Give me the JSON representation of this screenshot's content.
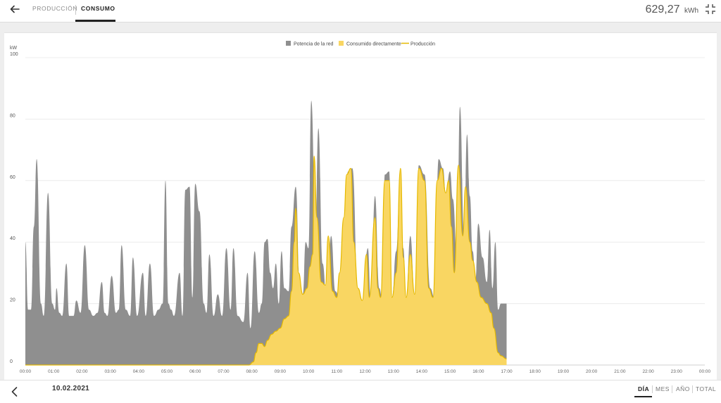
{
  "header": {
    "tabs": [
      {
        "label": "PRODUCCIÓN",
        "active": false
      },
      {
        "label": "CONSUMO",
        "active": true
      }
    ],
    "total_value": "629,27",
    "total_unit": "kWh"
  },
  "footer": {
    "date": "10.02.2021",
    "periods": [
      "DÍA",
      "MES",
      "AÑO",
      "TOTAL"
    ],
    "active_period": "DÍA"
  },
  "colors": {
    "grid": "#8f8f8f",
    "direct": "#f9d662",
    "production_line": "#e5b900"
  },
  "chart_data": {
    "type": "area",
    "ylabel": "kW",
    "ylim": [
      0,
      100
    ],
    "yticks": [
      0,
      20,
      40,
      60,
      80,
      100
    ],
    "xticks": [
      "00:00",
      "01:00",
      "02:00",
      "03:00",
      "04:00",
      "05:00",
      "06:00",
      "07:00",
      "08:00",
      "09:00",
      "10:00",
      "11:00",
      "12:00",
      "13:00",
      "14:00",
      "15:00",
      "16:00",
      "17:00",
      "18:00",
      "19:00",
      "20:00",
      "21:00",
      "22:00",
      "23:00",
      "00:00"
    ],
    "legend": [
      "Potencia de la red",
      "Consumido directamente",
      "Producción"
    ],
    "legend_position": "top-center",
    "series": [
      {
        "name": "Potencia de la red",
        "points": [
          [
            0.0,
            40
          ],
          [
            0.1,
            18
          ],
          [
            0.2,
            18
          ],
          [
            0.3,
            45
          ],
          [
            0.4,
            67
          ],
          [
            0.55,
            20
          ],
          [
            0.65,
            16
          ],
          [
            0.8,
            56
          ],
          [
            0.95,
            20
          ],
          [
            1.05,
            18
          ],
          [
            1.1,
            25
          ],
          [
            1.2,
            17
          ],
          [
            1.3,
            16
          ],
          [
            1.45,
            33
          ],
          [
            1.55,
            16
          ],
          [
            1.7,
            16
          ],
          [
            1.8,
            21
          ],
          [
            1.95,
            17
          ],
          [
            2.1,
            39
          ],
          [
            2.25,
            18
          ],
          [
            2.4,
            16
          ],
          [
            2.55,
            17
          ],
          [
            2.7,
            27
          ],
          [
            2.8,
            17
          ],
          [
            2.9,
            16
          ],
          [
            3.05,
            29
          ],
          [
            3.2,
            17
          ],
          [
            3.3,
            18
          ],
          [
            3.4,
            39
          ],
          [
            3.55,
            18
          ],
          [
            3.7,
            16
          ],
          [
            3.8,
            35
          ],
          [
            3.95,
            16
          ],
          [
            4.15,
            30
          ],
          [
            4.25,
            16
          ],
          [
            4.4,
            33
          ],
          [
            4.55,
            16
          ],
          [
            4.7,
            18
          ],
          [
            4.85,
            20
          ],
          [
            4.95,
            60
          ],
          [
            5.05,
            20
          ],
          [
            5.15,
            18
          ],
          [
            5.25,
            16
          ],
          [
            5.45,
            30
          ],
          [
            5.55,
            16
          ],
          [
            5.65,
            57
          ],
          [
            5.8,
            58
          ],
          [
            5.9,
            22
          ],
          [
            6.0,
            59
          ],
          [
            6.15,
            50
          ],
          [
            6.3,
            20
          ],
          [
            6.4,
            17
          ],
          [
            6.5,
            36
          ],
          [
            6.65,
            16
          ],
          [
            6.8,
            23
          ],
          [
            6.95,
            16
          ],
          [
            7.1,
            38
          ],
          [
            7.25,
            18
          ],
          [
            7.35,
            38
          ],
          [
            7.5,
            16
          ],
          [
            7.7,
            14
          ],
          [
            7.85,
            30
          ],
          [
            7.95,
            12
          ],
          [
            8.1,
            37
          ],
          [
            8.25,
            17
          ],
          [
            8.35,
            20
          ],
          [
            8.45,
            40
          ],
          [
            8.55,
            41
          ],
          [
            8.65,
            30
          ],
          [
            8.75,
            25
          ],
          [
            8.85,
            33
          ],
          [
            8.95,
            20
          ],
          [
            9.05,
            37
          ],
          [
            9.15,
            25
          ],
          [
            9.3,
            24
          ],
          [
            9.4,
            45
          ],
          [
            9.55,
            58
          ],
          [
            9.7,
            24
          ],
          [
            9.8,
            23
          ],
          [
            9.9,
            40
          ],
          [
            10.0,
            38
          ],
          [
            10.1,
            86
          ],
          [
            10.25,
            46
          ],
          [
            10.35,
            77
          ],
          [
            10.5,
            33
          ],
          [
            10.65,
            20
          ],
          [
            10.8,
            42
          ],
          [
            10.95,
            24
          ],
          [
            11.1,
            22
          ],
          [
            11.25,
            48
          ],
          [
            11.4,
            63
          ],
          [
            11.55,
            64
          ],
          [
            11.75,
            25
          ],
          [
            11.9,
            20
          ],
          [
            12.1,
            38
          ],
          [
            12.2,
            21
          ],
          [
            12.35,
            55
          ],
          [
            12.5,
            25
          ],
          [
            12.6,
            22
          ],
          [
            12.7,
            62
          ],
          [
            12.85,
            63
          ],
          [
            12.95,
            22
          ],
          [
            13.1,
            37
          ],
          [
            13.25,
            64
          ],
          [
            13.35,
            38
          ],
          [
            13.45,
            22
          ],
          [
            13.6,
            42
          ],
          [
            13.75,
            23
          ],
          [
            13.9,
            65
          ],
          [
            14.1,
            62
          ],
          [
            14.3,
            25
          ],
          [
            14.45,
            22
          ],
          [
            14.6,
            67
          ],
          [
            14.75,
            64
          ],
          [
            14.85,
            56
          ],
          [
            15.0,
            63
          ],
          [
            15.1,
            54
          ],
          [
            15.25,
            35
          ],
          [
            15.35,
            84
          ],
          [
            15.5,
            42
          ],
          [
            15.6,
            75
          ],
          [
            15.7,
            55
          ],
          [
            15.8,
            37
          ],
          [
            15.9,
            28
          ],
          [
            16.0,
            46
          ],
          [
            16.15,
            35
          ],
          [
            16.3,
            27
          ],
          [
            16.4,
            44
          ],
          [
            16.5,
            25
          ],
          [
            16.6,
            40
          ],
          [
            16.7,
            18
          ],
          [
            16.8,
            20
          ],
          [
            17.0,
            20
          ]
        ]
      },
      {
        "name": "Consumido directamente",
        "points": [
          [
            0.0,
            0
          ],
          [
            7.9,
            0
          ],
          [
            8.05,
            1
          ],
          [
            8.15,
            4
          ],
          [
            8.25,
            7
          ],
          [
            8.35,
            7
          ],
          [
            8.45,
            6
          ],
          [
            8.55,
            8
          ],
          [
            8.7,
            10
          ],
          [
            8.85,
            11
          ],
          [
            9.0,
            12
          ],
          [
            9.15,
            15
          ],
          [
            9.3,
            16
          ],
          [
            9.4,
            24
          ],
          [
            9.5,
            40
          ],
          [
            9.55,
            51
          ],
          [
            9.65,
            30
          ],
          [
            9.8,
            23
          ],
          [
            9.95,
            25
          ],
          [
            10.05,
            32
          ],
          [
            10.15,
            36
          ],
          [
            10.2,
            68
          ],
          [
            10.3,
            48
          ],
          [
            10.45,
            27
          ],
          [
            10.6,
            26
          ],
          [
            10.7,
            42
          ],
          [
            10.85,
            24
          ],
          [
            11.0,
            22
          ],
          [
            11.1,
            30
          ],
          [
            11.25,
            48
          ],
          [
            11.35,
            62
          ],
          [
            11.5,
            64
          ],
          [
            11.6,
            40
          ],
          [
            11.75,
            25
          ],
          [
            11.9,
            21
          ],
          [
            12.05,
            36
          ],
          [
            12.15,
            22
          ],
          [
            12.35,
            48
          ],
          [
            12.45,
            25
          ],
          [
            12.55,
            22
          ],
          [
            12.7,
            60
          ],
          [
            12.85,
            60
          ],
          [
            12.95,
            22
          ],
          [
            13.1,
            30
          ],
          [
            13.25,
            64
          ],
          [
            13.35,
            35
          ],
          [
            13.45,
            22
          ],
          [
            13.6,
            36
          ],
          [
            13.75,
            23
          ],
          [
            13.9,
            64
          ],
          [
            14.1,
            60
          ],
          [
            14.25,
            25
          ],
          [
            14.4,
            22
          ],
          [
            14.55,
            60
          ],
          [
            14.7,
            64
          ],
          [
            14.85,
            56
          ],
          [
            14.95,
            60
          ],
          [
            15.05,
            45
          ],
          [
            15.15,
            30
          ],
          [
            15.3,
            65
          ],
          [
            15.45,
            42
          ],
          [
            15.55,
            58
          ],
          [
            15.7,
            40
          ],
          [
            15.8,
            34
          ],
          [
            15.95,
            27
          ],
          [
            16.1,
            22
          ],
          [
            16.3,
            20
          ],
          [
            16.45,
            17
          ],
          [
            16.55,
            12
          ],
          [
            16.7,
            4
          ],
          [
            16.8,
            3
          ],
          [
            17.0,
            2
          ]
        ]
      },
      {
        "name": "Producción",
        "line": true,
        "points": [
          [
            0.0,
            0
          ],
          [
            7.9,
            0
          ],
          [
            8.05,
            1
          ],
          [
            8.15,
            4
          ],
          [
            8.25,
            7
          ],
          [
            8.35,
            7
          ],
          [
            8.45,
            6
          ],
          [
            8.55,
            8
          ],
          [
            8.7,
            10
          ],
          [
            8.85,
            11
          ],
          [
            9.0,
            12
          ],
          [
            9.15,
            15
          ],
          [
            9.3,
            16
          ],
          [
            9.4,
            24
          ],
          [
            9.5,
            40
          ],
          [
            9.55,
            51
          ],
          [
            9.65,
            30
          ],
          [
            9.8,
            23
          ],
          [
            9.95,
            25
          ],
          [
            10.05,
            32
          ],
          [
            10.15,
            36
          ],
          [
            10.2,
            68
          ],
          [
            10.3,
            48
          ],
          [
            10.45,
            27
          ],
          [
            10.6,
            26
          ],
          [
            10.7,
            42
          ],
          [
            10.85,
            24
          ],
          [
            11.0,
            22
          ],
          [
            11.1,
            30
          ],
          [
            11.25,
            48
          ],
          [
            11.35,
            62
          ],
          [
            11.5,
            64
          ],
          [
            11.6,
            40
          ],
          [
            11.75,
            25
          ],
          [
            11.9,
            21
          ],
          [
            12.05,
            36
          ],
          [
            12.15,
            22
          ],
          [
            12.35,
            48
          ],
          [
            12.45,
            25
          ],
          [
            12.55,
            22
          ],
          [
            12.7,
            60
          ],
          [
            12.85,
            60
          ],
          [
            12.95,
            22
          ],
          [
            13.1,
            30
          ],
          [
            13.25,
            64
          ],
          [
            13.35,
            35
          ],
          [
            13.45,
            22
          ],
          [
            13.6,
            36
          ],
          [
            13.75,
            23
          ],
          [
            13.9,
            64
          ],
          [
            14.1,
            60
          ],
          [
            14.25,
            25
          ],
          [
            14.4,
            22
          ],
          [
            14.55,
            60
          ],
          [
            14.7,
            64
          ],
          [
            14.85,
            56
          ],
          [
            14.95,
            60
          ],
          [
            15.05,
            45
          ],
          [
            15.15,
            30
          ],
          [
            15.3,
            65
          ],
          [
            15.45,
            42
          ],
          [
            15.55,
            58
          ],
          [
            15.7,
            40
          ],
          [
            15.8,
            34
          ],
          [
            15.95,
            27
          ],
          [
            16.1,
            22
          ],
          [
            16.3,
            20
          ],
          [
            16.45,
            17
          ],
          [
            16.55,
            12
          ],
          [
            16.7,
            4
          ],
          [
            16.8,
            3
          ],
          [
            17.0,
            2
          ]
        ]
      }
    ],
    "x_unit_note": "hours"
  }
}
